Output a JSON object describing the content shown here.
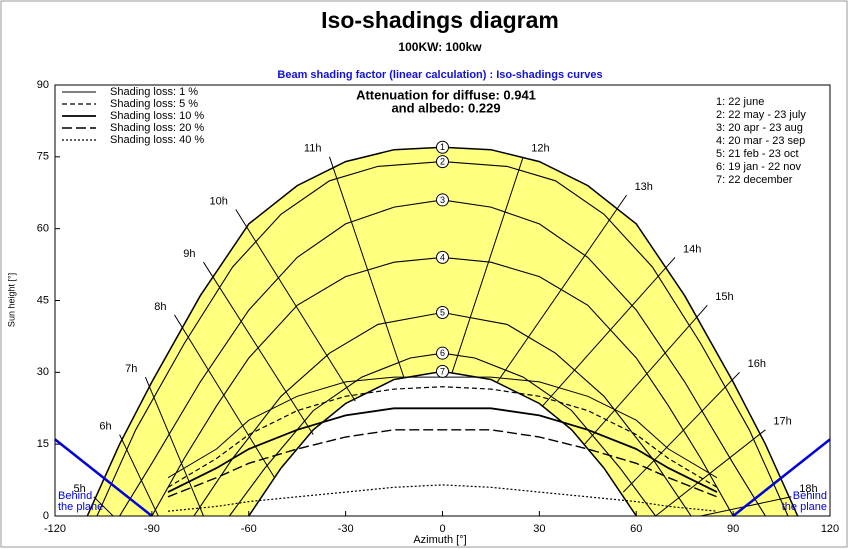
{
  "chart_data": {
    "type": "sunpath",
    "title": "Iso-shadings diagram",
    "subtitle": "100KW: 100kw",
    "header": "Beam shading factor (linear calculation) : Iso-shadings curves",
    "diffuse_text": "Attenuation for diffuse: 0.941",
    "albedo_text": "and albedo: 0.229",
    "x_label": "Azimuth [°]",
    "y_label": "Sun height [°]",
    "xlim": [
      -120,
      120
    ],
    "xticks": [
      -120,
      -90,
      -60,
      -30,
      0,
      30,
      60,
      90,
      120
    ],
    "ylim": [
      0,
      90
    ],
    "yticks": [
      0,
      15,
      30,
      45,
      60,
      75,
      90
    ],
    "zone_color": "#ffff80",
    "plane_color": "#0000dd",
    "behind_plane_label": "Behind the plane",
    "series": [
      {
        "name": "1: 22 june",
        "marker": "1",
        "x": [
          -110,
          -100,
          -90,
          -75,
          -60,
          -45,
          -30,
          -15,
          0,
          15,
          30,
          45,
          60,
          75,
          90,
          100,
          110
        ],
        "values": [
          0,
          15,
          28,
          46,
          61,
          69,
          74,
          76.5,
          77,
          76.5,
          74,
          69,
          61,
          46,
          28,
          15,
          0
        ]
      },
      {
        "name": "2: 22 may - 23 july",
        "marker": "2",
        "x": [
          -107,
          -95,
          -80,
          -65,
          -50,
          -35,
          -20,
          0,
          20,
          35,
          50,
          65,
          80,
          95,
          107
        ],
        "values": [
          0,
          18,
          36,
          52,
          63,
          70,
          73,
          74,
          73,
          70,
          63,
          52,
          36,
          18,
          0
        ]
      },
      {
        "name": "3: 20 apr - 23 aug",
        "marker": "3",
        "x": [
          -100,
          -90,
          -75,
          -60,
          -45,
          -30,
          -15,
          0,
          15,
          30,
          45,
          60,
          75,
          90,
          100
        ],
        "values": [
          0,
          11,
          28,
          43,
          54,
          61,
          64.5,
          66,
          64.5,
          61,
          54,
          43,
          28,
          11,
          0
        ]
      },
      {
        "name": "4: 20 mar - 23 sep",
        "marker": "4",
        "x": [
          -90,
          -80,
          -70,
          -60,
          -45,
          -30,
          -15,
          0,
          15,
          30,
          45,
          60,
          70,
          80,
          90
        ],
        "values": [
          0,
          12,
          23,
          33,
          44,
          50,
          53,
          54,
          53,
          50,
          44,
          33,
          23,
          12,
          0
        ]
      },
      {
        "name": "5: 21 feb - 23 oct",
        "marker": "5",
        "x": [
          -77,
          -65,
          -50,
          -35,
          -20,
          0,
          20,
          35,
          50,
          65,
          77
        ],
        "values": [
          0,
          12,
          25,
          34,
          40,
          42.5,
          40,
          34,
          25,
          12,
          0
        ]
      },
      {
        "name": "6: 19 jan - 22 nov",
        "marker": "6",
        "x": [
          -66,
          -55,
          -40,
          -25,
          -10,
          0,
          10,
          25,
          40,
          55,
          66
        ],
        "values": [
          0,
          10,
          22,
          29,
          33,
          34,
          33,
          29,
          22,
          10,
          0
        ]
      },
      {
        "name": "7: 22 december",
        "marker": "7",
        "x": [
          -60,
          -50,
          -40,
          -30,
          -15,
          0,
          15,
          30,
          40,
          50,
          60
        ],
        "values": [
          0,
          10,
          18,
          23.5,
          28.5,
          30.2,
          28.5,
          23.5,
          18,
          10,
          0
        ]
      }
    ],
    "loss_x": [
      -85,
      -70,
      -60,
      -45,
      -30,
      -15,
      0,
      15,
      30,
      45,
      60,
      70,
      85
    ],
    "loss_curves": [
      {
        "name": "Shading loss: 1 %",
        "values": [
          8,
          14,
          20,
          25,
          28,
          29,
          29,
          29,
          28,
          25,
          20,
          14,
          8
        ]
      },
      {
        "name": "Shading loss: 5 %",
        "values": [
          6,
          12,
          17,
          22,
          25,
          26.5,
          27,
          26.5,
          25,
          22,
          17,
          12,
          6
        ]
      },
      {
        "name": "Shading loss: 10 %",
        "values": [
          5,
          10,
          14,
          18,
          21,
          22.5,
          22.5,
          22.5,
          21,
          18,
          14,
          10,
          5
        ]
      },
      {
        "name": "Shading loss: 20 %",
        "values": [
          4,
          8,
          11,
          14,
          16.5,
          18,
          18,
          18,
          16.5,
          14,
          11,
          8,
          4
        ]
      },
      {
        "name": "Shading loss: 40 %",
        "values": [
          1,
          2,
          3,
          4,
          5,
          6,
          6.5,
          6,
          5,
          4,
          3,
          2,
          1
        ]
      }
    ],
    "plane_lines": [
      {
        "x": [
          -120,
          -90
        ],
        "values": [
          16,
          0
        ]
      },
      {
        "x": [
          90,
          120
        ],
        "values": [
          0,
          16
        ]
      }
    ],
    "hour_lines": [
      {
        "label": "5h",
        "x": [
          -108,
          -102
        ],
        "values": [
          4,
          0
        ]
      },
      {
        "label": "6h",
        "x": [
          -100,
          -88
        ],
        "values": [
          17,
          0
        ]
      },
      {
        "label": "7h",
        "x": [
          -92,
          -74
        ],
        "values": [
          29,
          0
        ]
      },
      {
        "label": "8h",
        "x": [
          -83,
          -52
        ],
        "values": [
          42,
          8
        ]
      },
      {
        "label": "9h",
        "x": [
          -74,
          -40
        ],
        "values": [
          53,
          17
        ]
      },
      {
        "label": "10h",
        "x": [
          -64,
          -27
        ],
        "values": [
          64,
          24
        ]
      },
      {
        "label": "11h",
        "x": [
          -35,
          -12
        ],
        "values": [
          75,
          29
        ]
      },
      {
        "label": "12h",
        "x": [
          25,
          3
        ],
        "values": [
          75,
          30
        ]
      },
      {
        "label": "13h",
        "x": [
          57,
          17
        ],
        "values": [
          67,
          28
        ]
      },
      {
        "label": "14h",
        "x": [
          72,
          31
        ],
        "values": [
          54,
          23
        ]
      },
      {
        "label": "15h",
        "x": [
          82,
          44
        ],
        "values": [
          44,
          15
        ]
      },
      {
        "label": "16h",
        "x": [
          92,
          56
        ],
        "values": [
          30,
          5
        ]
      },
      {
        "label": "17h",
        "x": [
          100,
          66
        ],
        "values": [
          18,
          0
        ]
      },
      {
        "label": "18h",
        "x": [
          108,
          80
        ],
        "values": [
          4,
          0
        ]
      }
    ]
  }
}
